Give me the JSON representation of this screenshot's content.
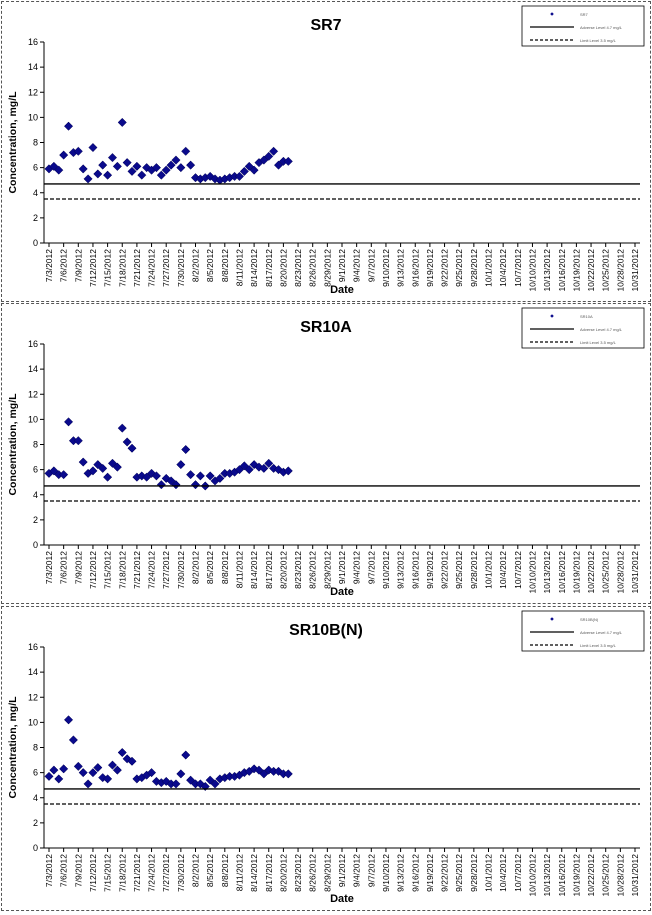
{
  "chart_data": [
    {
      "type": "scatter",
      "title": "SR7",
      "xlabel": "Date",
      "ylabel": "Concentration, mg/L",
      "ylim": [
        0,
        16
      ],
      "yticks": [
        "0",
        "2",
        "4",
        "6",
        "8",
        "10",
        "12",
        "14",
        "16"
      ],
      "grid": false,
      "legend": "top-right",
      "x": [
        "7/3/2012",
        "7/6/2012",
        "7/9/2012",
        "7/12/2012",
        "7/15/2012",
        "7/18/2012",
        "7/21/2012",
        "7/24/2012",
        "7/27/2012",
        "7/30/2012",
        "8/2/2012",
        "8/5/2012",
        "8/8/2012",
        "8/11/2012",
        "8/14/2012",
        "8/17/2012",
        "8/20/2012",
        "8/23/2012",
        "8/26/2012",
        "8/29/2012",
        "9/1/2012",
        "9/4/2012",
        "9/7/2012",
        "9/10/2012",
        "9/13/2012",
        "9/16/2012",
        "9/19/2012",
        "9/22/2012",
        "9/25/2012",
        "9/28/2012",
        "10/1/2012",
        "10/4/2012",
        "10/7/2012",
        "10/10/2012",
        "10/13/2012",
        "10/16/2012",
        "10/19/2012",
        "10/22/2012",
        "10/25/2012",
        "10/28/2012",
        "10/31/2012"
      ],
      "series": [
        {
          "name": "SR7",
          "points": [
            [
              "7/3/2012",
              5.9
            ],
            [
              "7/4/2012",
              6.1
            ],
            [
              "7/5/2012",
              5.8
            ],
            [
              "7/6/2012",
              7.0
            ],
            [
              "7/7/2012",
              9.3
            ],
            [
              "7/8/2012",
              7.2
            ],
            [
              "7/9/2012",
              7.3
            ],
            [
              "7/10/2012",
              5.9
            ],
            [
              "7/11/2012",
              5.1
            ],
            [
              "7/12/2012",
              7.6
            ],
            [
              "7/13/2012",
              5.5
            ],
            [
              "7/14/2012",
              6.2
            ],
            [
              "7/15/2012",
              5.4
            ],
            [
              "7/16/2012",
              6.8
            ],
            [
              "7/17/2012",
              6.1
            ],
            [
              "7/18/2012",
              9.6
            ],
            [
              "7/19/2012",
              6.4
            ],
            [
              "7/20/2012",
              5.7
            ],
            [
              "7/21/2012",
              6.1
            ],
            [
              "7/22/2012",
              5.4
            ],
            [
              "7/23/2012",
              6.0
            ],
            [
              "7/24/2012",
              5.8
            ],
            [
              "7/25/2012",
              6.0
            ],
            [
              "7/26/2012",
              5.4
            ],
            [
              "7/27/2012",
              5.8
            ],
            [
              "7/28/2012",
              6.2
            ],
            [
              "7/29/2012",
              6.6
            ],
            [
              "7/30/2012",
              6.0
            ],
            [
              "7/31/2012",
              7.3
            ],
            [
              "8/1/2012",
              6.2
            ],
            [
              "8/2/2012",
              5.2
            ],
            [
              "8/3/2012",
              5.1
            ],
            [
              "8/4/2012",
              5.2
            ],
            [
              "8/5/2012",
              5.3
            ],
            [
              "8/6/2012",
              5.1
            ],
            [
              "8/7/2012",
              5.0
            ],
            [
              "8/8/2012",
              5.1
            ],
            [
              "8/9/2012",
              5.2
            ],
            [
              "8/10/2012",
              5.3
            ],
            [
              "8/11/2012",
              5.3
            ],
            [
              "8/12/2012",
              5.7
            ],
            [
              "8/13/2012",
              6.1
            ],
            [
              "8/14/2012",
              5.8
            ],
            [
              "8/15/2012",
              6.4
            ],
            [
              "8/16/2012",
              6.6
            ],
            [
              "8/17/2012",
              6.9
            ],
            [
              "8/18/2012",
              7.3
            ],
            [
              "8/19/2012",
              6.2
            ],
            [
              "8/20/2012",
              6.5
            ],
            [
              "8/21/2012",
              6.5
            ]
          ]
        },
        {
          "name": "Adverse Level 4.7 mg/L",
          "constant": 4.7,
          "style": "solid"
        },
        {
          "name": "Limit Level 3.5 mg/L",
          "constant": 3.5,
          "style": "dashed"
        }
      ]
    },
    {
      "type": "scatter",
      "title": "SR10A",
      "xlabel": "Date",
      "ylabel": "Concentration, mg/L",
      "ylim": [
        0,
        16
      ],
      "yticks": [
        "0",
        "2",
        "4",
        "6",
        "8",
        "10",
        "12",
        "14",
        "16"
      ],
      "grid": false,
      "legend": "top-right",
      "x": [
        "7/3/2012",
        "7/6/2012",
        "7/9/2012",
        "7/12/2012",
        "7/15/2012",
        "7/18/2012",
        "7/21/2012",
        "7/24/2012",
        "7/27/2012",
        "7/30/2012",
        "8/2/2012",
        "8/5/2012",
        "8/8/2012",
        "8/11/2012",
        "8/14/2012",
        "8/17/2012",
        "8/20/2012",
        "8/23/2012",
        "8/26/2012",
        "8/29/2012",
        "9/1/2012",
        "9/4/2012",
        "9/7/2012",
        "9/10/2012",
        "9/13/2012",
        "9/16/2012",
        "9/19/2012",
        "9/22/2012",
        "9/25/2012",
        "9/28/2012",
        "10/1/2012",
        "10/4/2012",
        "10/7/2012",
        "10/10/2012",
        "10/13/2012",
        "10/16/2012",
        "10/19/2012",
        "10/22/2012",
        "10/25/2012",
        "10/28/2012",
        "10/31/2012"
      ],
      "series": [
        {
          "name": "SR10A",
          "points": [
            [
              "7/3/2012",
              5.7
            ],
            [
              "7/4/2012",
              5.9
            ],
            [
              "7/5/2012",
              5.6
            ],
            [
              "7/6/2012",
              5.6
            ],
            [
              "7/7/2012",
              9.8
            ],
            [
              "7/8/2012",
              8.3
            ],
            [
              "7/9/2012",
              8.3
            ],
            [
              "7/10/2012",
              6.6
            ],
            [
              "7/11/2012",
              5.7
            ],
            [
              "7/12/2012",
              5.9
            ],
            [
              "7/13/2012",
              6.4
            ],
            [
              "7/14/2012",
              6.1
            ],
            [
              "7/15/2012",
              5.4
            ],
            [
              "7/16/2012",
              6.5
            ],
            [
              "7/17/2012",
              6.2
            ],
            [
              "7/18/2012",
              9.3
            ],
            [
              "7/19/2012",
              8.2
            ],
            [
              "7/20/2012",
              7.7
            ],
            [
              "7/21/2012",
              5.4
            ],
            [
              "7/22/2012",
              5.5
            ],
            [
              "7/23/2012",
              5.4
            ],
            [
              "7/24/2012",
              5.7
            ],
            [
              "7/25/2012",
              5.5
            ],
            [
              "7/26/2012",
              4.8
            ],
            [
              "7/27/2012",
              5.3
            ],
            [
              "7/28/2012",
              5.1
            ],
            [
              "7/29/2012",
              4.8
            ],
            [
              "7/30/2012",
              6.4
            ],
            [
              "7/31/2012",
              7.6
            ],
            [
              "8/1/2012",
              5.6
            ],
            [
              "8/2/2012",
              4.8
            ],
            [
              "8/3/2012",
              5.5
            ],
            [
              "8/4/2012",
              4.7
            ],
            [
              "8/5/2012",
              5.5
            ],
            [
              "8/6/2012",
              5.1
            ],
            [
              "8/7/2012",
              5.3
            ],
            [
              "8/8/2012",
              5.7
            ],
            [
              "8/9/2012",
              5.7
            ],
            [
              "8/10/2012",
              5.8
            ],
            [
              "8/11/2012",
              6.0
            ],
            [
              "8/12/2012",
              6.3
            ],
            [
              "8/13/2012",
              6.0
            ],
            [
              "8/14/2012",
              6.4
            ],
            [
              "8/15/2012",
              6.2
            ],
            [
              "8/16/2012",
              6.1
            ],
            [
              "8/17/2012",
              6.5
            ],
            [
              "8/18/2012",
              6.1
            ],
            [
              "8/19/2012",
              6.0
            ],
            [
              "8/20/2012",
              5.8
            ],
            [
              "8/21/2012",
              5.9
            ]
          ]
        },
        {
          "name": "Adverse Level 4.7 mg/L",
          "constant": 4.7,
          "style": "solid"
        },
        {
          "name": "Limit Level 3.5 mg/L",
          "constant": 3.5,
          "style": "dashed"
        }
      ]
    },
    {
      "type": "scatter",
      "title": "SR10B(N)",
      "xlabel": "Date",
      "ylabel": "Concentration, mg/L",
      "ylim": [
        0,
        16
      ],
      "yticks": [
        "0",
        "2",
        "4",
        "6",
        "8",
        "10",
        "12",
        "14",
        "16"
      ],
      "grid": false,
      "legend": "top-right",
      "x": [
        "7/3/2012",
        "7/6/2012",
        "7/9/2012",
        "7/12/2012",
        "7/15/2012",
        "7/18/2012",
        "7/21/2012",
        "7/24/2012",
        "7/27/2012",
        "7/30/2012",
        "8/2/2012",
        "8/5/2012",
        "8/8/2012",
        "8/11/2012",
        "8/14/2012",
        "8/17/2012",
        "8/20/2012",
        "8/23/2012",
        "8/26/2012",
        "8/29/2012",
        "9/1/2012",
        "9/4/2012",
        "9/7/2012",
        "9/10/2012",
        "9/13/2012",
        "9/16/2012",
        "9/19/2012",
        "9/22/2012",
        "9/25/2012",
        "9/28/2012",
        "10/1/2012",
        "10/4/2012",
        "10/7/2012",
        "10/10/2012",
        "10/13/2012",
        "10/16/2012",
        "10/19/2012",
        "10/22/2012",
        "10/25/2012",
        "10/28/2012",
        "10/31/2012"
      ],
      "series": [
        {
          "name": "SR10B(N)",
          "points": [
            [
              "7/3/2012",
              5.7
            ],
            [
              "7/4/2012",
              6.2
            ],
            [
              "7/5/2012",
              5.5
            ],
            [
              "7/6/2012",
              6.3
            ],
            [
              "7/7/2012",
              10.2
            ],
            [
              "7/8/2012",
              8.6
            ],
            [
              "7/9/2012",
              6.5
            ],
            [
              "7/10/2012",
              6.0
            ],
            [
              "7/11/2012",
              5.1
            ],
            [
              "7/12/2012",
              6.0
            ],
            [
              "7/13/2012",
              6.4
            ],
            [
              "7/14/2012",
              5.6
            ],
            [
              "7/15/2012",
              5.5
            ],
            [
              "7/16/2012",
              6.6
            ],
            [
              "7/17/2012",
              6.2
            ],
            [
              "7/18/2012",
              7.6
            ],
            [
              "7/19/2012",
              7.1
            ],
            [
              "7/20/2012",
              6.9
            ],
            [
              "7/21/2012",
              5.5
            ],
            [
              "7/22/2012",
              5.6
            ],
            [
              "7/23/2012",
              5.8
            ],
            [
              "7/24/2012",
              6.0
            ],
            [
              "7/25/2012",
              5.3
            ],
            [
              "7/26/2012",
              5.2
            ],
            [
              "7/27/2012",
              5.3
            ],
            [
              "7/28/2012",
              5.1
            ],
            [
              "7/29/2012",
              5.1
            ],
            [
              "7/30/2012",
              5.9
            ],
            [
              "7/31/2012",
              7.4
            ],
            [
              "8/1/2012",
              5.4
            ],
            [
              "8/2/2012",
              5.1
            ],
            [
              "8/3/2012",
              5.1
            ],
            [
              "8/4/2012",
              4.9
            ],
            [
              "8/5/2012",
              5.4
            ],
            [
              "8/6/2012",
              5.1
            ],
            [
              "8/7/2012",
              5.5
            ],
            [
              "8/8/2012",
              5.6
            ],
            [
              "8/9/2012",
              5.7
            ],
            [
              "8/10/2012",
              5.7
            ],
            [
              "8/11/2012",
              5.8
            ],
            [
              "8/12/2012",
              6.0
            ],
            [
              "8/13/2012",
              6.1
            ],
            [
              "8/14/2012",
              6.3
            ],
            [
              "8/15/2012",
              6.2
            ],
            [
              "8/16/2012",
              5.9
            ],
            [
              "8/17/2012",
              6.2
            ],
            [
              "8/18/2012",
              6.1
            ],
            [
              "8/19/2012",
              6.1
            ],
            [
              "8/20/2012",
              5.9
            ],
            [
              "8/21/2012",
              5.9
            ]
          ]
        },
        {
          "name": "Adverse Level 4.7 mg/L",
          "constant": 4.7,
          "style": "solid"
        },
        {
          "name": "Limit Level 3.5 mg/L",
          "constant": 3.5,
          "style": "dashed"
        }
      ]
    }
  ]
}
